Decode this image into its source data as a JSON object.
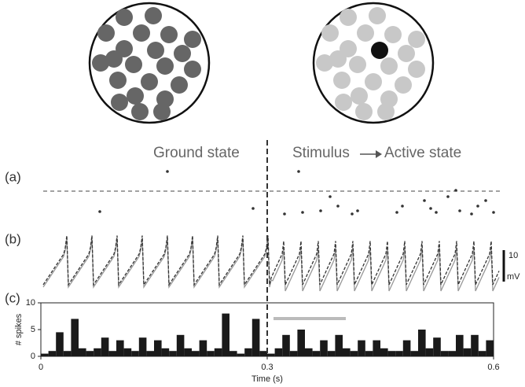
{
  "chart_data": {
    "type": "histogram",
    "annotations": [
      "Ground state",
      "Stimulus",
      "Active state",
      "(a)",
      "(b)",
      "(c)",
      "10",
      "mV"
    ],
    "x_label": "Time (s)",
    "y_label": "# spikes",
    "bins": [
      0,
      0.01,
      0.02,
      0.03,
      0.04,
      0.05,
      0.06,
      0.07,
      0.08,
      0.09,
      0.1,
      0.11,
      0.12,
      0.13,
      0.14,
      0.15,
      0.16,
      0.17,
      0.18,
      0.19,
      0.2,
      0.21,
      0.22,
      0.23,
      0.24,
      0.25,
      0.26,
      0.27,
      0.28,
      0.29,
      0.3,
      0.31,
      0.32,
      0.33,
      0.34,
      0.35,
      0.36,
      0.37,
      0.38,
      0.39,
      0.4,
      0.41,
      0.42,
      0.43,
      0.44,
      0.45,
      0.46,
      0.47,
      0.48,
      0.49,
      0.5,
      0.51,
      0.52,
      0.53,
      0.54,
      0.55,
      0.56,
      0.57,
      0.58,
      0.59,
      0.6
    ],
    "values": [
      0.5,
      1,
      4.5,
      1,
      7,
      1.5,
      1,
      1.5,
      3.5,
      1,
      3,
      1.5,
      1,
      3.5,
      1,
      3,
      1.5,
      1,
      4,
      1.5,
      1,
      3,
      1,
      1.5,
      8,
      1,
      0.5,
      1.5,
      7,
      1,
      0.5,
      1.5,
      4,
      1,
      5,
      1.5,
      1,
      3,
      1,
      4,
      1.5,
      1,
      3,
      1,
      3,
      1.5,
      1,
      1,
      3,
      1,
      5,
      1.5,
      3.5,
      1,
      1,
      4,
      1.5,
      4,
      1,
      3
    ],
    "color": "#1a1a1a",
    "xlim": [
      0,
      0.6
    ],
    "xticks": [
      0,
      0.3,
      0.6
    ],
    "ylim": [
      0,
      10
    ],
    "yticks": [
      0,
      5,
      10
    ]
  }
}
